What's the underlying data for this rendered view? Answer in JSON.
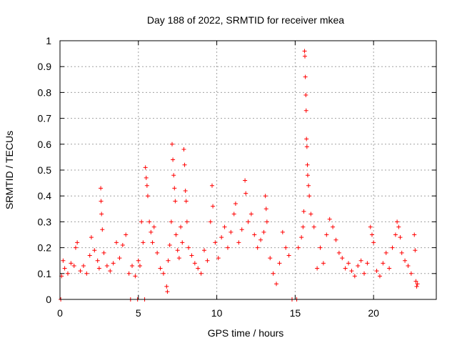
{
  "chart_data": {
    "type": "scatter",
    "title": "Day 188 of 2022, SRMTID for receiver mkea",
    "xlabel": "GPS time / hours",
    "ylabel": "SRMTID / TECUs",
    "xlim": [
      0,
      24
    ],
    "ylim": [
      0,
      1
    ],
    "xticks": [
      "0",
      "5",
      "10",
      "15",
      "20"
    ],
    "yticks": [
      "0",
      "0.1",
      "0.2",
      "0.3",
      "0.4",
      "0.5",
      "0.6",
      "0.7",
      "0.8",
      "0.9",
      "1"
    ],
    "grid": true,
    "marker": "+",
    "color": "#ff0000",
    "data_range_hours": [
      0,
      22.8
    ],
    "baseline_level": [
      0.05,
      0.25
    ],
    "series": [
      {
        "name": "SRMTID",
        "points": [
          [
            0.05,
            0.0
          ],
          [
            0.1,
            0.09
          ],
          [
            0.2,
            0.15
          ],
          [
            0.3,
            0.12
          ],
          [
            0.5,
            0.1
          ],
          [
            0.7,
            0.14
          ],
          [
            0.9,
            0.13
          ],
          [
            1.0,
            0.2
          ],
          [
            1.1,
            0.22
          ],
          [
            1.3,
            0.11
          ],
          [
            1.5,
            0.13
          ],
          [
            1.7,
            0.1
          ],
          [
            1.9,
            0.17
          ],
          [
            2.0,
            0.24
          ],
          [
            2.2,
            0.19
          ],
          [
            2.4,
            0.15
          ],
          [
            2.5,
            0.12
          ],
          [
            2.6,
            0.43
          ],
          [
            2.62,
            0.38
          ],
          [
            2.65,
            0.33
          ],
          [
            2.7,
            0.27
          ],
          [
            2.8,
            0.18
          ],
          [
            3.0,
            0.13
          ],
          [
            3.2,
            0.11
          ],
          [
            3.4,
            0.14
          ],
          [
            3.6,
            0.22
          ],
          [
            3.8,
            0.16
          ],
          [
            4.0,
            0.21
          ],
          [
            4.2,
            0.25
          ],
          [
            4.4,
            0.1
          ],
          [
            4.5,
            0.0
          ],
          [
            4.6,
            0.13
          ],
          [
            4.8,
            0.09
          ],
          [
            4.95,
            0.0
          ],
          [
            5.0,
            0.15
          ],
          [
            5.1,
            0.13
          ],
          [
            5.2,
            0.3
          ],
          [
            5.3,
            0.22
          ],
          [
            5.4,
            0.0
          ],
          [
            5.45,
            0.51
          ],
          [
            5.5,
            0.47
          ],
          [
            5.55,
            0.44
          ],
          [
            5.6,
            0.4
          ],
          [
            5.7,
            0.3
          ],
          [
            5.8,
            0.26
          ],
          [
            5.9,
            0.22
          ],
          [
            6.0,
            0.28
          ],
          [
            6.2,
            0.18
          ],
          [
            6.4,
            0.12
          ],
          [
            6.6,
            0.1
          ],
          [
            6.8,
            0.05
          ],
          [
            6.85,
            0.03
          ],
          [
            6.9,
            0.15
          ],
          [
            7.0,
            0.21
          ],
          [
            7.1,
            0.3
          ],
          [
            7.15,
            0.6
          ],
          [
            7.2,
            0.54
          ],
          [
            7.25,
            0.48
          ],
          [
            7.3,
            0.43
          ],
          [
            7.35,
            0.38
          ],
          [
            7.4,
            0.25
          ],
          [
            7.5,
            0.19
          ],
          [
            7.6,
            0.16
          ],
          [
            7.7,
            0.28
          ],
          [
            7.8,
            0.22
          ],
          [
            7.9,
            0.58
          ],
          [
            7.95,
            0.52
          ],
          [
            8.0,
            0.42
          ],
          [
            8.05,
            0.38
          ],
          [
            8.1,
            0.3
          ],
          [
            8.2,
            0.2
          ],
          [
            8.4,
            0.17
          ],
          [
            8.6,
            0.14
          ],
          [
            8.8,
            0.12
          ],
          [
            9.0,
            0.1
          ],
          [
            9.2,
            0.19
          ],
          [
            9.4,
            0.15
          ],
          [
            9.6,
            0.3
          ],
          [
            9.7,
            0.44
          ],
          [
            9.75,
            0.36
          ],
          [
            9.9,
            0.22
          ],
          [
            10.1,
            0.16
          ],
          [
            10.3,
            0.24
          ],
          [
            10.5,
            0.28
          ],
          [
            10.7,
            0.2
          ],
          [
            10.9,
            0.26
          ],
          [
            11.1,
            0.33
          ],
          [
            11.2,
            0.37
          ],
          [
            11.4,
            0.22
          ],
          [
            11.6,
            0.27
          ],
          [
            11.8,
            0.46
          ],
          [
            11.85,
            0.41
          ],
          [
            12.0,
            0.3
          ],
          [
            12.2,
            0.33
          ],
          [
            12.4,
            0.25
          ],
          [
            12.6,
            0.2
          ],
          [
            12.8,
            0.23
          ],
          [
            13.0,
            0.26
          ],
          [
            13.1,
            0.4
          ],
          [
            13.15,
            0.35
          ],
          [
            13.2,
            0.3
          ],
          [
            13.4,
            0.16
          ],
          [
            13.6,
            0.1
          ],
          [
            13.8,
            0.06
          ],
          [
            14.0,
            0.14
          ],
          [
            14.2,
            0.26
          ],
          [
            14.4,
            0.2
          ],
          [
            14.6,
            0.17
          ],
          [
            14.8,
            0.0
          ],
          [
            15.1,
            0.0
          ],
          [
            15.2,
            0.2
          ],
          [
            15.4,
            0.24
          ],
          [
            15.5,
            0.28
          ],
          [
            15.55,
            0.34
          ],
          [
            15.6,
            0.96
          ],
          [
            15.62,
            0.94
          ],
          [
            15.65,
            0.86
          ],
          [
            15.68,
            0.79
          ],
          [
            15.7,
            0.73
          ],
          [
            15.72,
            0.62
          ],
          [
            15.75,
            0.59
          ],
          [
            15.78,
            0.52
          ],
          [
            15.8,
            0.48
          ],
          [
            15.85,
            0.44
          ],
          [
            15.9,
            0.4
          ],
          [
            16.0,
            0.33
          ],
          [
            16.2,
            0.28
          ],
          [
            16.4,
            0.12
          ],
          [
            16.6,
            0.2
          ],
          [
            16.8,
            0.14
          ],
          [
            17.0,
            0.25
          ],
          [
            17.2,
            0.31
          ],
          [
            17.4,
            0.28
          ],
          [
            17.6,
            0.23
          ],
          [
            17.8,
            0.18
          ],
          [
            18.0,
            0.16
          ],
          [
            18.2,
            0.12
          ],
          [
            18.4,
            0.14
          ],
          [
            18.6,
            0.11
          ],
          [
            18.8,
            0.09
          ],
          [
            19.0,
            0.13
          ],
          [
            19.2,
            0.15
          ],
          [
            19.4,
            0.1
          ],
          [
            19.6,
            0.14
          ],
          [
            19.8,
            0.28
          ],
          [
            19.9,
            0.25
          ],
          [
            20.0,
            0.22
          ],
          [
            20.2,
            0.11
          ],
          [
            20.4,
            0.09
          ],
          [
            20.6,
            0.14
          ],
          [
            20.8,
            0.18
          ],
          [
            21.0,
            0.12
          ],
          [
            21.2,
            0.2
          ],
          [
            21.4,
            0.25
          ],
          [
            21.5,
            0.3
          ],
          [
            21.6,
            0.28
          ],
          [
            21.7,
            0.24
          ],
          [
            21.8,
            0.18
          ],
          [
            22.0,
            0.15
          ],
          [
            22.2,
            0.13
          ],
          [
            22.4,
            0.1
          ],
          [
            22.6,
            0.25
          ],
          [
            22.65,
            0.19
          ],
          [
            22.7,
            0.07
          ],
          [
            22.75,
            0.05
          ],
          [
            22.8,
            0.06
          ]
        ]
      }
    ]
  }
}
